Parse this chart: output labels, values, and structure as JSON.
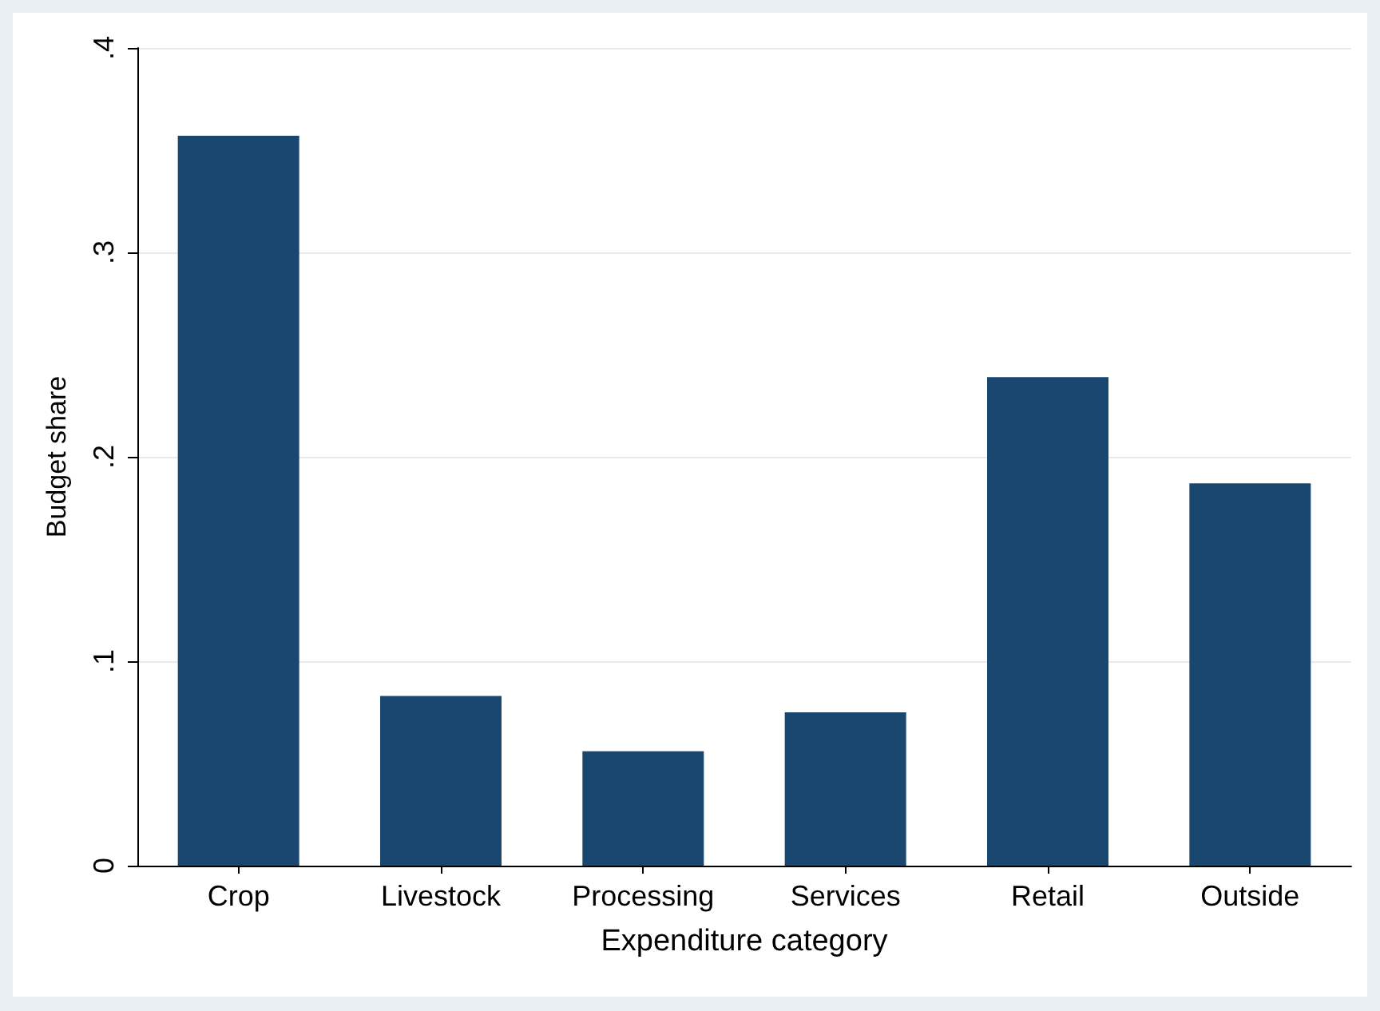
{
  "chart_data": {
    "type": "bar",
    "xlabel": "Expenditure category",
    "ylabel": "Budget share",
    "categories": [
      "Crop",
      "Livestock",
      "Processing",
      "Services",
      "Retail",
      "Outside"
    ],
    "values": [
      0.357,
      0.083,
      0.056,
      0.075,
      0.239,
      0.187
    ],
    "color": "#1a476f",
    "ylim": [
      0,
      0.4
    ],
    "yticks": [
      0,
      {
        "value": 0.1,
        "label": ".1"
      },
      {
        "value": 0.2,
        "label": ".2"
      },
      {
        "value": 0.3,
        "label": ".3"
      },
      {
        "value": 0.4,
        "label": ".4"
      }
    ],
    "grid": "y"
  }
}
